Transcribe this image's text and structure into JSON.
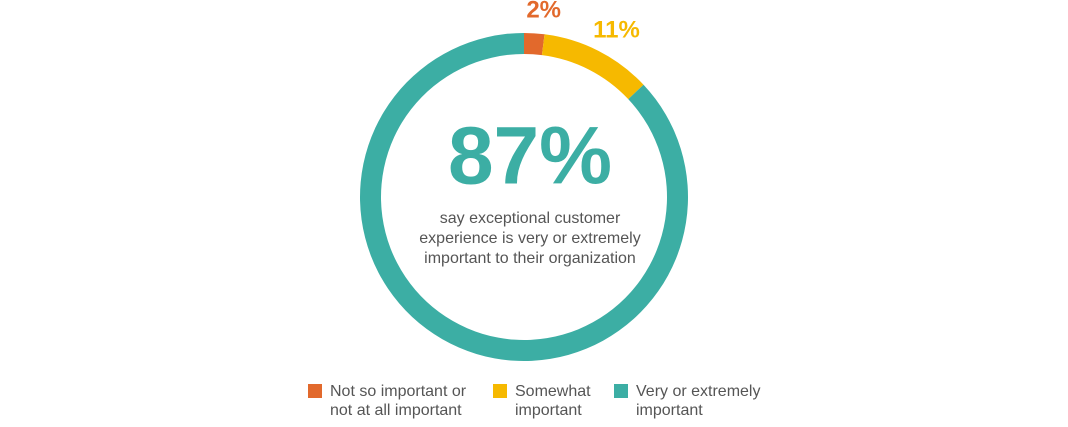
{
  "chart_data": {
    "type": "donut",
    "categories": [
      "Not so important or not at all important",
      "Somewhat important",
      "Very or extremely important"
    ],
    "values": [
      2,
      11,
      87
    ],
    "value_labels": [
      "2%",
      "11%",
      "87%"
    ],
    "colors": [
      "#e2692c",
      "#f6b900",
      "#3caea4"
    ],
    "center_text": [
      "say exceptional customer",
      "experience is very or extremely",
      "important to their organization"
    ]
  }
}
